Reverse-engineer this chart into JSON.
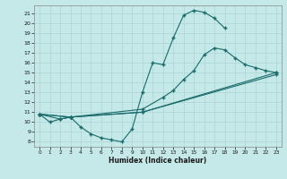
{
  "xlabel": "Humidex (Indice chaleur)",
  "xlim": [
    -0.5,
    23.5
  ],
  "ylim": [
    7.5,
    21.8
  ],
  "xticks": [
    0,
    1,
    2,
    3,
    4,
    5,
    6,
    7,
    8,
    9,
    10,
    11,
    12,
    13,
    14,
    15,
    16,
    17,
    18,
    19,
    20,
    21,
    22,
    23
  ],
  "yticks": [
    8,
    9,
    10,
    11,
    12,
    13,
    14,
    15,
    16,
    17,
    18,
    19,
    20,
    21
  ],
  "bg_color": "#c5e8e8",
  "line_color": "#1a6b6b",
  "grid_color": "#b0d8d8",
  "line1_x": [
    0,
    1,
    2,
    3,
    4,
    5,
    6,
    7,
    8,
    9,
    10,
    11,
    12,
    13,
    14,
    15,
    16,
    17,
    18
  ],
  "line1_y": [
    10.8,
    10.0,
    10.3,
    10.5,
    9.5,
    8.8,
    8.4,
    8.2,
    8.0,
    9.3,
    13.0,
    16.0,
    15.8,
    18.5,
    20.8,
    21.3,
    21.1,
    20.5,
    19.5
  ],
  "line2_x": [
    0,
    2,
    3,
    10,
    12,
    13,
    14,
    15,
    16,
    17,
    18,
    19,
    20,
    21,
    22,
    23
  ],
  "line2_y": [
    10.8,
    10.3,
    10.5,
    11.3,
    12.5,
    13.2,
    14.3,
    15.2,
    16.8,
    17.5,
    17.3,
    16.5,
    15.8,
    15.5,
    15.2,
    15.0
  ],
  "line3_x": [
    0,
    3,
    10,
    23
  ],
  "line3_y": [
    10.8,
    10.5,
    11.0,
    15.0
  ],
  "line4_x": [
    0,
    3,
    10,
    23
  ],
  "line4_y": [
    10.8,
    10.5,
    11.0,
    14.8
  ]
}
